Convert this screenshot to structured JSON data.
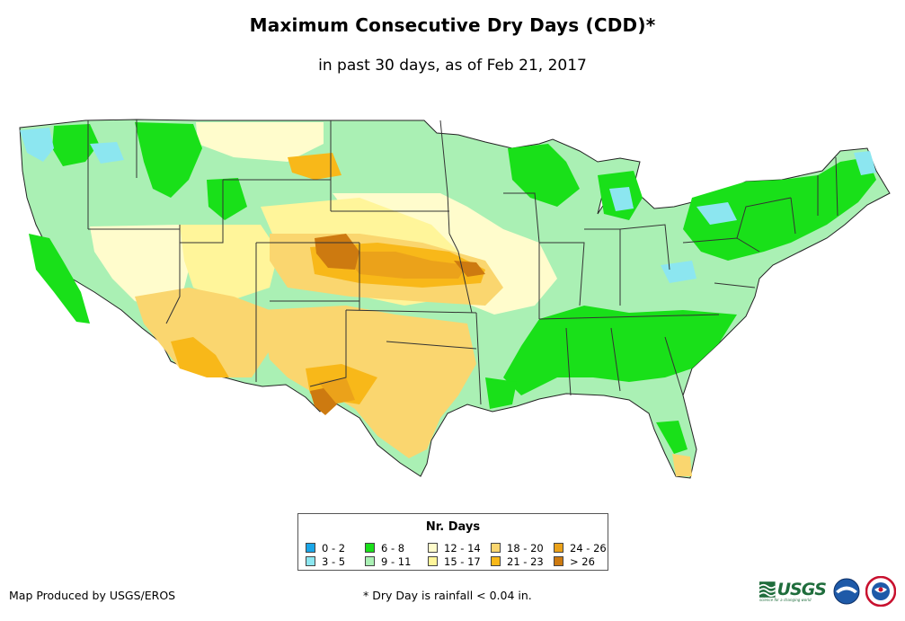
{
  "title": "Maximum Consecutive Dry Days (CDD)*",
  "subtitle": "in past 30 days, as of Feb 21, 2017",
  "legend": {
    "title": "Nr. Days",
    "items": [
      {
        "label": "0 - 2",
        "color": "#1aa6e8"
      },
      {
        "label": "6 - 8",
        "color": "#19e019"
      },
      {
        "label": "12 - 14",
        "color": "#fffccc"
      },
      {
        "label": "18 - 20",
        "color": "#fad66f"
      },
      {
        "label": "24 - 26",
        "color": "#eba21a"
      },
      {
        "label": "3 - 5",
        "color": "#8ce6f0"
      },
      {
        "label": "9 - 11",
        "color": "#aaf0b4"
      },
      {
        "label": "15 - 17",
        "color": "#fff59a"
      },
      {
        "label": "21 - 23",
        "color": "#f8b819"
      },
      {
        "label": "> 26",
        "color": "#cd7a10"
      }
    ]
  },
  "footer": {
    "credit": "Map Produced by USGS/EROS",
    "note": "* Dry Day is rainfall < 0.04 in."
  },
  "logos": {
    "usgs": "USGS",
    "usgs_tagline": "science for a changing world"
  }
}
